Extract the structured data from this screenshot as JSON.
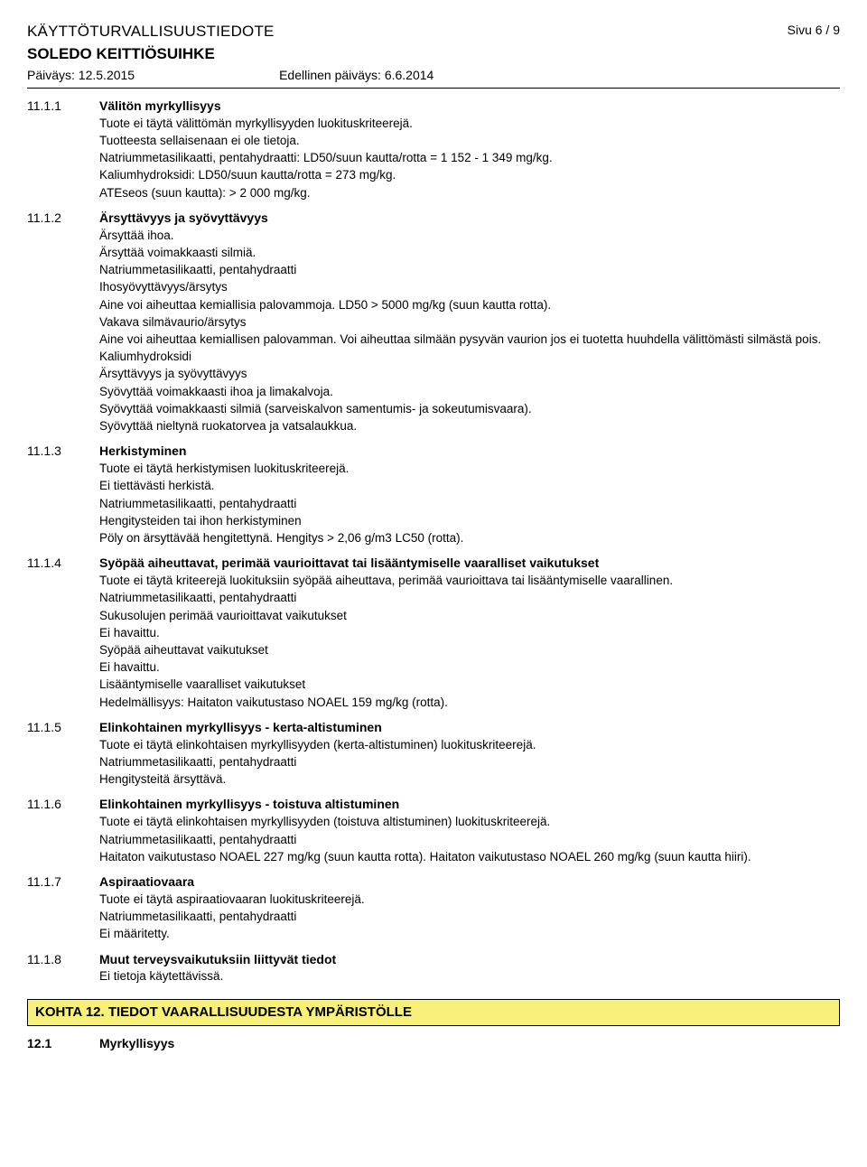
{
  "header": {
    "doc_title": "KÄYTTÖTURVALLISUUSTIEDOTE",
    "page_label": "Sivu  6 / 9",
    "product": "SOLEDO KEITTIÖSUIHKE",
    "date_left": "Päiväys: 12.5.2015",
    "date_right": "Edellinen päiväys: 6.6.2014"
  },
  "s1": {
    "num": "11.1.1",
    "title": "Välitön myrkyllisyys",
    "l1": "Tuote ei täytä välittömän myrkyllisyyden luokituskriteerejä.",
    "l2": "Tuotteesta sellaisenaan ei ole tietoja.",
    "l3": "Natriummetasilikaatti, pentahydraatti: LD50/suun kautta/rotta = 1 152 - 1 349 mg/kg.",
    "l4": "Kaliumhydroksidi: LD50/suun kautta/rotta = 273 mg/kg.",
    "l5": "ATEseos (suun kautta): > 2 000 mg/kg."
  },
  "s2": {
    "num": "11.1.2",
    "title": "Ärsyttävyys ja syövyttävyys",
    "l1": "Ärsyttää ihoa.",
    "l2": "Ärsyttää voimakkaasti silmiä.",
    "l3": "Natriummetasilikaatti, pentahydraatti",
    "l4": "Ihosyövyttävyys/ärsytys",
    "l5": "Aine voi aiheuttaa kemiallisia palovammoja. LD50 > 5000 mg/kg (suun kautta rotta).",
    "l6": "Vakava silmävaurio/ärsytys",
    "l7": "Aine voi aiheuttaa kemiallisen palovamman. Voi aiheuttaa silmään pysyvän vaurion jos ei tuotetta huuhdella välittömästi silmästä pois.",
    "l8": "Kaliumhydroksidi",
    "l9": "Ärsyttävyys ja syövyttävyys",
    "l10": "Syövyttää voimakkaasti ihoa ja limakalvoja.",
    "l11": "Syövyttää voimakkaasti silmiä (sarveiskalvon samentumis- ja sokeutumisvaara).",
    "l12": "Syövyttää nieltynä ruokatorvea ja vatsalaukkua."
  },
  "s3": {
    "num": "11.1.3",
    "title": "Herkistyminen",
    "l1": "Tuote ei täytä herkistymisen luokituskriteerejä.",
    "l2": "Ei tiettävästi herkistä.",
    "l3": "Natriummetasilikaatti, pentahydraatti",
    "l4": "Hengitysteiden tai ihon herkistyminen",
    "l5": "Pöly on ärsyttävää hengitettynä. Hengitys  > 2,06 g/m3 LC50 (rotta)."
  },
  "s4": {
    "num": "11.1.4",
    "title": "Syöpää aiheuttavat, perimää vaurioittavat tai lisääntymiselle vaaralliset vaikutukset",
    "l1": "Tuote ei täytä kriteerejä luokituksiin syöpää aiheuttava, perimää vaurioittava tai lisääntymiselle vaarallinen.",
    "l2": "Natriummetasilikaatti, pentahydraatti",
    "l3": "Sukusolujen perimää vaurioittavat vaikutukset",
    "l4": "Ei havaittu.",
    "l5": "Syöpää aiheuttavat vaikutukset",
    "l6": "Ei havaittu.",
    "l7": "Lisääntymiselle vaaralliset vaikutukset",
    "l8": "Hedelmällisyys: Haitaton vaikutustaso NOAEL 159 mg/kg (rotta)."
  },
  "s5": {
    "num": "11.1.5",
    "title": "Elinkohtainen myrkyllisyys - kerta-altistuminen",
    "l1": "Tuote ei täytä elinkohtaisen myrkyllisyyden (kerta-altistuminen) luokituskriteerejä.",
    "l2": "Natriummetasilikaatti, pentahydraatti",
    "l3": "Hengitysteitä ärsyttävä."
  },
  "s6": {
    "num": "11.1.6",
    "title": "Elinkohtainen myrkyllisyys - toistuva altistuminen",
    "l1": "Tuote ei täytä elinkohtaisen myrkyllisyyden (toistuva altistuminen) luokituskriteerejä.",
    "l2": "Natriummetasilikaatti, pentahydraatti",
    "l3": "Haitaton vaikutustaso NOAEL 227 mg/kg (suun kautta rotta). Haitaton vaikutustaso NOAEL 260 mg/kg (suun kautta hiiri)."
  },
  "s7": {
    "num": "11.1.7",
    "title": "Aspiraatiovaara",
    "l1": "Tuote ei täytä aspiraatiovaaran luokituskriteerejä.",
    "l2": "Natriummetasilikaatti, pentahydraatti",
    "l3": "Ei määritetty."
  },
  "s8": {
    "num": "11.1.8",
    "title": "Muut terveysvaikutuksiin liittyvät tiedot",
    "l1": "Ei tietoja käytettävissä."
  },
  "kohta12": {
    "title": "KOHTA 12. TIEDOT VAARALLISUUDESTA YMPÄRISTÖLLE"
  },
  "s121": {
    "num": "12.1",
    "title": "Myrkyllisyys"
  },
  "colors": {
    "kohta_bg": "#f7f07a",
    "text": "#000000",
    "bg": "#ffffff"
  }
}
